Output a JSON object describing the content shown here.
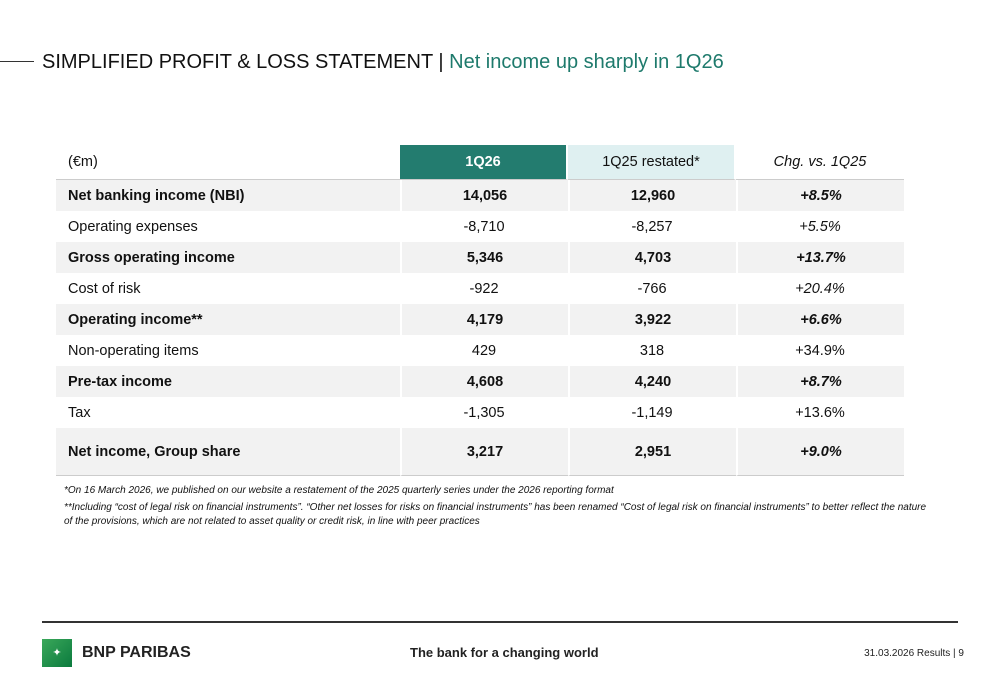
{
  "header": {
    "title": "SIMPLIFIED PROFIT & LOSS STATEMENT | ",
    "subtitle": "Net income up sharply in 1Q26"
  },
  "table": {
    "columns": [
      "(€m)",
      "1Q26",
      "1Q25 restated*",
      "Chg. vs. 1Q25"
    ],
    "rows": [
      {
        "label": "Net banking income (NBI)",
        "q126": "14,056",
        "q125": "12,960",
        "chg": "+8.5%",
        "bold": true,
        "italic": true
      },
      {
        "label": "Operating expenses",
        "q126": "-8,710",
        "q125": "-8,257",
        "chg": "+5.5%",
        "bold": false,
        "italic": true
      },
      {
        "label": "Gross operating income",
        "q126": "5,346",
        "q125": "4,703",
        "chg": "+13.7%",
        "bold": true,
        "italic": true
      },
      {
        "label": "Cost of risk",
        "q126": "-922",
        "q125": "-766",
        "chg": "+20.4%",
        "bold": false,
        "italic": true
      },
      {
        "label": "Operating income**",
        "q126": "4,179",
        "q125": "3,922",
        "chg": "+6.6%",
        "bold": true,
        "italic": true
      },
      {
        "label": "Non-operating items",
        "q126": "429",
        "q125": "318",
        "chg": "+34.9%",
        "bold": false,
        "italic": false
      },
      {
        "label": "Pre-tax income",
        "q126": "4,608",
        "q125": "4,240",
        "chg": "+8.7%",
        "bold": true,
        "italic": true
      },
      {
        "label": "Tax",
        "q126": "-1,305",
        "q125": "-1,149",
        "chg": "+13.6%",
        "bold": false,
        "italic": false
      },
      {
        "label": "Net income, Group share",
        "q126": "3,217",
        "q125": "2,951",
        "chg": "+9.0%",
        "bold": true,
        "italic": true
      }
    ]
  },
  "notes": [
    "*On 16 March 2026, we published on our website a restatement of the 2025 quarterly series under the 2026 reporting format",
    "**Including “cost of legal risk on financial instruments”. “Other net losses for risks on financial instruments” has been renamed “Cost of legal risk on financial instruments” to better reflect the nature of the provisions, which are not related to asset quality or credit risk, in line with peer practices"
  ],
  "footer": {
    "brand": "BNP PARIBAS",
    "tagline": "The bank for a changing world",
    "page": "31.03.2026 Results | 9"
  },
  "colors": {
    "accent": "#237c6f",
    "accent_light": "#dff0f1",
    "title_green": "#1e7a6c"
  }
}
